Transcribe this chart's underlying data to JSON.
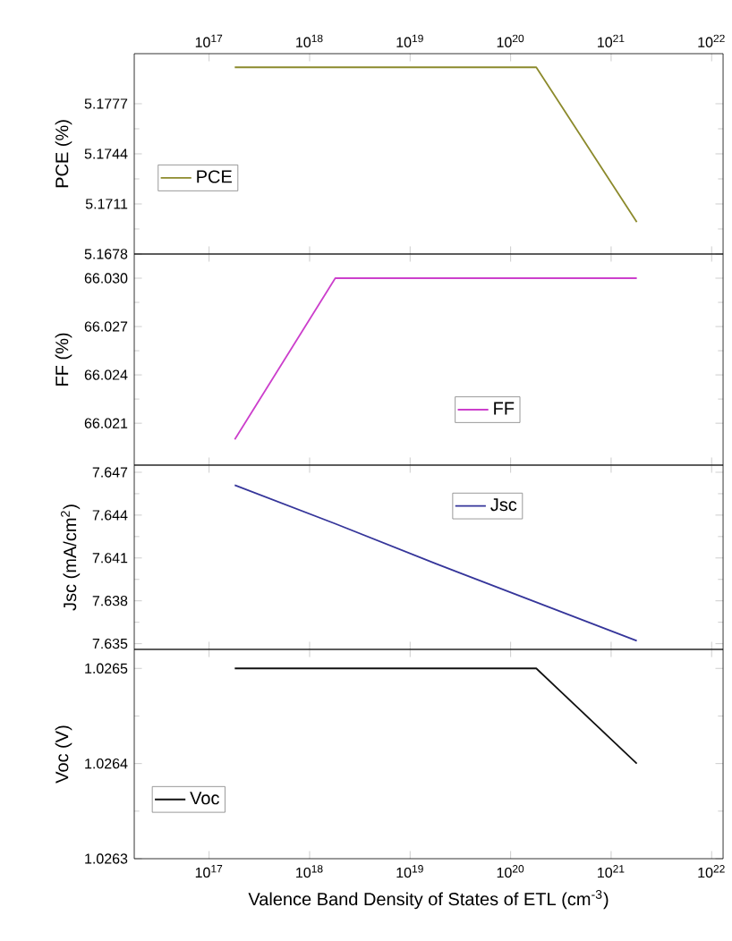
{
  "chart_data": [
    {
      "type": "line",
      "ylabel": "PCE (%)",
      "log": "x",
      "x": [
        1.8e+17,
        1.8e+18,
        1.8e+19,
        1.8e+20,
        1.8e+21
      ],
      "xlim": [
        1.8e+16,
        1.3e+22
      ],
      "xticks": [
        {
          "value": 1e+17,
          "label": "10$^{17}$"
        },
        {
          "value": 1e+18,
          "label": "10$^{18}$"
        },
        {
          "value": 1e+19,
          "label": "10$^{19}$"
        },
        {
          "value": 1e+20,
          "label": "10$^{20}$"
        },
        {
          "value": 1e+21,
          "label": "10$^{21}$"
        },
        {
          "value": 1e+22,
          "label": "10$^{22}$"
        }
      ],
      "ylim": [
        5.1678,
        5.181
      ],
      "yticks": [
        5.1678,
        5.1711,
        5.1744,
        5.1777
      ],
      "legend": "left",
      "series": [
        {
          "name": "PCE",
          "color": "#8c8a2c",
          "values": [
            5.1801,
            5.1801,
            5.1801,
            5.1801,
            5.1699
          ]
        }
      ]
    },
    {
      "type": "line",
      "ylabel": "FF (%)",
      "log": "x",
      "x": [
        1.8e+17,
        1.8e+18,
        1.8e+19,
        1.8e+20,
        1.8e+21
      ],
      "xlim": [
        1.8e+16,
        1.3e+22
      ],
      "xticks": [
        {
          "value": 1e+17,
          "label": null
        },
        {
          "value": 1e+18,
          "label": null
        },
        {
          "value": 1e+19,
          "label": null
        },
        {
          "value": 1e+20,
          "label": null
        },
        {
          "value": 1e+21,
          "label": null
        },
        {
          "value": 1e+22,
          "label": null
        }
      ],
      "ylim": [
        66.0184,
        66.0315
      ],
      "yticks": [
        66.021,
        66.024,
        66.027,
        {
          "value": 66.03,
          "label": "66.030"
        }
      ],
      "tick_labels": "y",
      "legend": "bottom",
      "series": [
        {
          "name": "FF",
          "color": "#cc3fcc",
          "values": [
            66.02,
            66.03,
            66.03,
            66.03,
            66.03
          ]
        }
      ]
    },
    {
      "type": "line",
      "ylabel": "Jsc (mA/cm$^{2}$)",
      "log": "x",
      "x": [
        1.8e+17,
        1.8e+18,
        1.8e+19,
        1.8e+20,
        1.8e+21
      ],
      "xlim": [
        1.8e+16,
        1.3e+22
      ],
      "xticks": [
        {
          "value": 1e+17,
          "label": null
        },
        {
          "value": 1e+18,
          "label": null
        },
        {
          "value": 1e+19,
          "label": null
        },
        {
          "value": 1e+20,
          "label": null
        },
        {
          "value": 1e+21,
          "label": null
        },
        {
          "value": 1e+22,
          "label": null
        }
      ],
      "ylim": [
        7.6346,
        7.6475
      ],
      "yticks": [
        7.635,
        7.638,
        7.641,
        7.644,
        7.647
      ],
      "tick_labels": "y",
      "legend": "top",
      "series": [
        {
          "name": "Jsc",
          "color": "#35359a",
          "values": [
            7.6461,
            7.6434,
            7.6406,
            7.6379,
            7.6352
          ]
        }
      ]
    },
    {
      "type": "line",
      "xlabel": "Valence Band Density of States of ETL (cm$^{-3}$)",
      "ylabel": "Voc (V)",
      "log": "x",
      "x": [
        1.8e+17,
        1.8e+18,
        1.8e+19,
        1.8e+20,
        1.8e+21
      ],
      "xlim": [
        1.8e+16,
        1.3e+22
      ],
      "xticks": [
        {
          "value": 1e+17,
          "label": "10$^{17}$"
        },
        {
          "value": 1e+18,
          "label": "10$^{18}$"
        },
        {
          "value": 1e+19,
          "label": "10$^{19}$"
        },
        {
          "value": 1e+20,
          "label": "10$^{20}$"
        },
        {
          "value": 1e+21,
          "label": "10$^{21}$"
        },
        {
          "value": 1e+22,
          "label": "10$^{22}$"
        }
      ],
      "ylim": [
        1.0263,
        1.02652
      ],
      "yticks": [
        1.0263,
        1.0264,
        1.0265
      ],
      "legend": "bottom left",
      "series": [
        {
          "name": "Voc",
          "color": "#111111",
          "values": [
            1.0265,
            1.0265,
            1.0265,
            1.0265,
            1.0264
          ]
        }
      ]
    }
  ]
}
